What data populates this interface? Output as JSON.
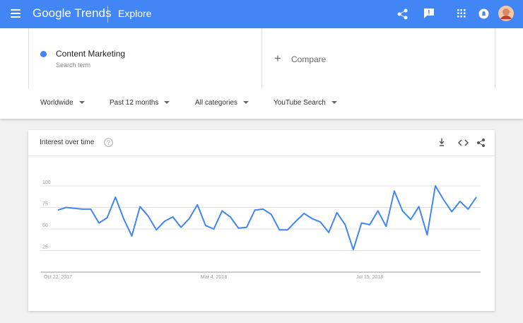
{
  "header": {
    "brand": "Google Trends",
    "section": "Explore"
  },
  "search": {
    "term": "Content Marketing",
    "subtitle": "Search term",
    "compare": "Compare"
  },
  "filters": [
    "Worldwide",
    "Past 12 months",
    "All categories",
    "YouTube Search"
  ],
  "card": {
    "title": "Interest over time"
  },
  "chart_data": {
    "type": "line",
    "categories": [
      "Oct 22, 2017",
      null,
      null,
      null,
      null,
      null,
      null,
      null,
      null,
      null,
      null,
      null,
      null,
      null,
      null,
      null,
      null,
      null,
      null,
      "Mar 4, 2018",
      null,
      null,
      null,
      null,
      null,
      null,
      null,
      null,
      null,
      null,
      null,
      null,
      null,
      null,
      null,
      null,
      null,
      null,
      "Jul 15, 2018",
      null,
      null,
      null,
      null,
      null,
      null,
      null,
      null,
      null,
      null,
      null,
      null,
      null
    ],
    "series": [
      {
        "color": "#4285f4",
        "values": [
          72,
          75,
          74,
          73,
          73,
          57,
          63,
          87,
          62,
          42,
          76,
          65,
          49,
          59,
          64,
          52,
          62,
          78,
          54,
          50,
          71,
          64,
          51,
          52,
          72,
          73,
          67,
          49,
          49,
          59,
          68,
          62,
          58,
          46,
          69,
          55,
          26,
          57,
          55,
          71,
          53,
          94,
          71,
          61,
          76,
          43,
          100,
          84,
          70,
          82,
          73,
          87
        ]
      }
    ],
    "ylim": [
      0,
      100
    ],
    "yticks": [
      25,
      50,
      75,
      100
    ],
    "grid": true
  }
}
